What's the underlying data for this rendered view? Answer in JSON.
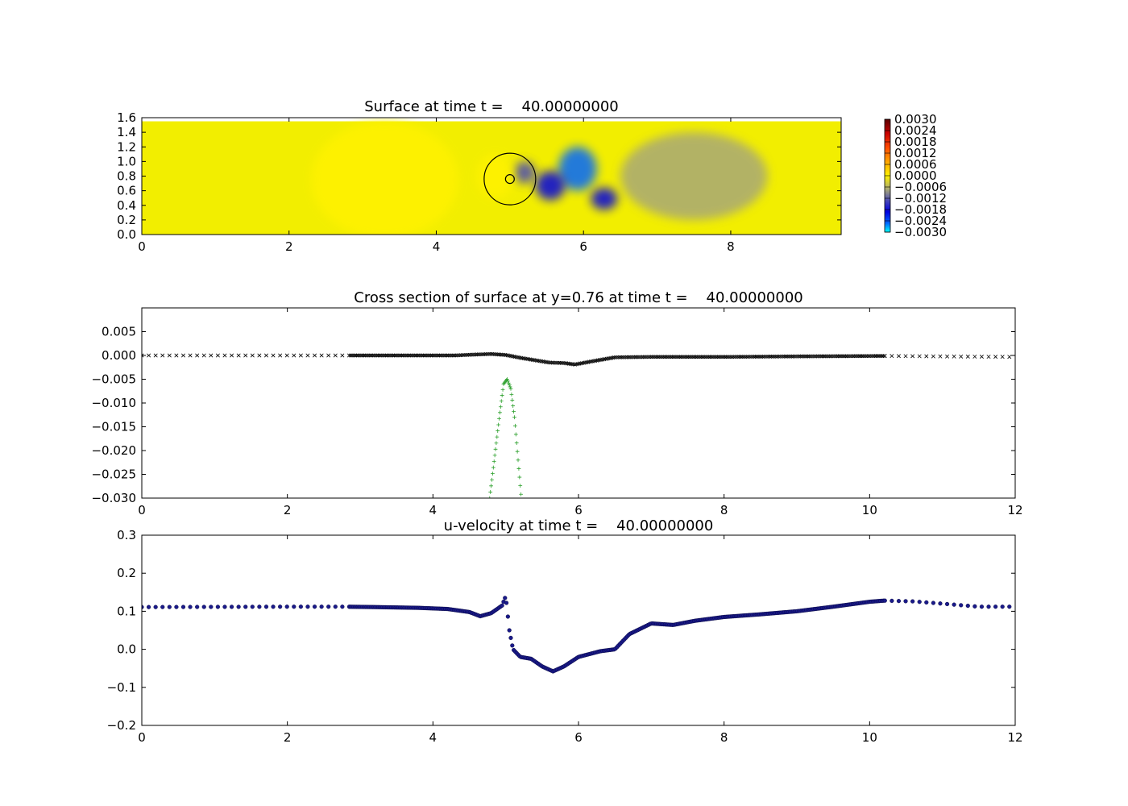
{
  "colors": {
    "frame": "#000000",
    "series_a": "#000000",
    "series_b": "#2ca02c",
    "series_c": "#1a1a8a",
    "field_base": "#f2ee00"
  },
  "chart_data": [
    {
      "type": "heatmap",
      "title": "Surface at time t =    40.00000000",
      "xlim": [
        0,
        9.5
      ],
      "ylim": [
        0,
        1.6
      ],
      "xticks": [
        "0",
        "2",
        "4",
        "6",
        "8"
      ],
      "yticks": [
        "0.0",
        "0.2",
        "0.4",
        "0.6",
        "0.8",
        "1.0",
        "1.2",
        "1.4",
        "1.6"
      ],
      "colorbar_ticks": [
        "0.0030",
        "0.0024",
        "0.0018",
        "0.0012",
        "0.0006",
        "0.0000",
        "−0.0006",
        "−0.0012",
        "−0.0018",
        "−0.0024",
        "−0.0030"
      ],
      "clim": [
        -0.003,
        0.003
      ],
      "domain_top": 1.55,
      "features": [
        {
          "x": 5.92,
          "y": 0.9,
          "rx": 0.26,
          "ry": 0.3,
          "value": -0.002
        },
        {
          "x": 5.55,
          "y": 0.67,
          "rx": 0.2,
          "ry": 0.2,
          "value": -0.0017
        },
        {
          "x": 6.28,
          "y": 0.49,
          "rx": 0.18,
          "ry": 0.15,
          "value": -0.0014
        },
        {
          "x": 5.2,
          "y": 0.85,
          "rx": 0.15,
          "ry": 0.15,
          "value": -0.0008
        },
        {
          "x": 4.8,
          "y": 0.8,
          "rx": 0.25,
          "ry": 0.3,
          "value": 0.0005
        },
        {
          "x": 7.5,
          "y": 0.8,
          "rx": 1.0,
          "ry": 0.6,
          "value": -0.0004
        },
        {
          "x": 3.3,
          "y": 0.75,
          "rx": 1.0,
          "ry": 0.8,
          "value": 5e-05
        }
      ],
      "circles": [
        {
          "x": 5.0,
          "y": 0.76,
          "r": 0.35
        },
        {
          "x": 5.0,
          "y": 0.76,
          "r": 0.06
        }
      ]
    },
    {
      "type": "scatter",
      "title": "Cross section of surface at y=0.76 at time t =    40.00000000",
      "xlim": [
        0,
        12
      ],
      "ylim": [
        -0.03,
        0.01
      ],
      "xticks": [
        "0",
        "2",
        "4",
        "6",
        "8",
        "10",
        "12"
      ],
      "yticks": [
        "0.005",
        "0.000",
        "−0.005",
        "−0.010",
        "−0.015",
        "−0.020",
        "−0.025",
        "−0.030"
      ],
      "series": [
        {
          "marker": "x",
          "x": [
            0,
            2.8,
            4.3,
            4.6,
            4.8,
            5.0,
            5.2,
            5.4,
            5.6,
            5.8,
            5.95,
            6.2,
            6.5,
            7.0,
            8.0,
            9.0,
            10.2,
            11.0,
            12.0
          ],
          "y": [
            0,
            0,
            0,
            0.0002,
            0.0003,
            0.0001,
            -0.0005,
            -0.001,
            -0.0015,
            -0.0016,
            -0.0019,
            -0.0012,
            -0.0004,
            -0.0003,
            -0.0003,
            -0.0002,
            -0.0001,
            -0.0002,
            -0.0003
          ]
        },
        {
          "marker": "+",
          "x": [
            4.78,
            4.85,
            4.92,
            4.97,
            5.02,
            5.07,
            5.12,
            5.17,
            5.22
          ],
          "y": [
            -0.03,
            -0.021,
            -0.012,
            -0.006,
            -0.005,
            -0.007,
            -0.013,
            -0.022,
            -0.031
          ]
        }
      ]
    },
    {
      "type": "scatter",
      "title": "u-velocity at time t =    40.00000000",
      "xlim": [
        0,
        12
      ],
      "ylim": [
        -0.2,
        0.3
      ],
      "xticks": [
        "0",
        "2",
        "4",
        "6",
        "8",
        "10",
        "12"
      ],
      "yticks": [
        "0.3",
        "0.2",
        "0.1",
        "0.0",
        "−0.1",
        "−0.2"
      ],
      "series": [
        {
          "marker": "o",
          "x": [
            0,
            2.0,
            2.8,
            3.2,
            3.8,
            4.2,
            4.5,
            4.65,
            4.8,
            4.95,
            5.0,
            5.05,
            5.1,
            5.2,
            5.35,
            5.5,
            5.65,
            5.8,
            6.0,
            6.3,
            6.5,
            6.7,
            7.0,
            7.3,
            7.6,
            8.0,
            8.5,
            9.0,
            9.5,
            10.0,
            10.2,
            10.6,
            11.0,
            11.5,
            12.0
          ],
          "y": [
            0.111,
            0.112,
            0.112,
            0.111,
            0.109,
            0.106,
            0.098,
            0.087,
            0.095,
            0.115,
            0.14,
            0.05,
            0.0,
            -0.02,
            -0.025,
            -0.045,
            -0.058,
            -0.045,
            -0.02,
            -0.005,
            0.0,
            0.04,
            0.068,
            0.064,
            0.075,
            0.085,
            0.092,
            0.1,
            0.112,
            0.125,
            0.128,
            0.126,
            0.12,
            0.112,
            0.112
          ]
        }
      ]
    }
  ]
}
